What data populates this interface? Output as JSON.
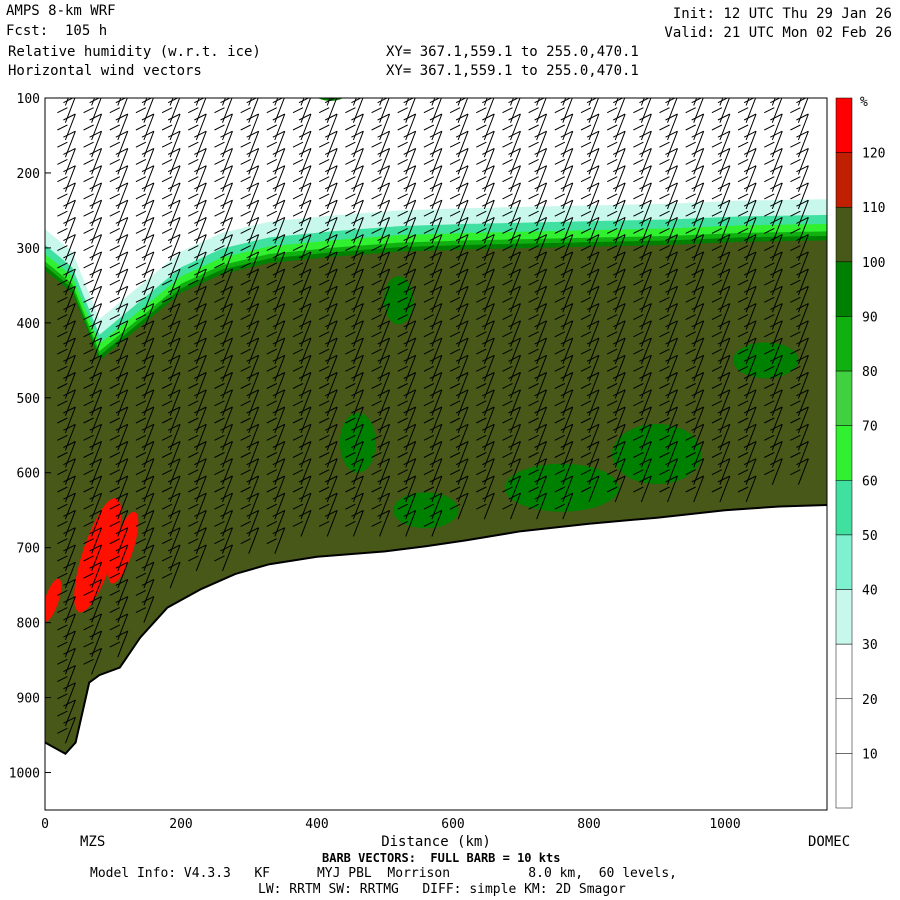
{
  "header": {
    "model": "AMPS 8-km WRF",
    "forecast": "Fcst:  105 h",
    "field1": "Relative humidity (w.r.t. ice)",
    "field2": "Horizontal wind vectors",
    "xy1": "XY= 367.1,559.1 to 255.0,470.1",
    "xy2": "XY= 367.1,559.1 to 255.0,470.1",
    "init": "Init: 12 UTC Thu 29 Jan 26",
    "valid": "Valid: 21 UTC Mon 02 Feb 26"
  },
  "footer": {
    "barb": "BARB VECTORS:  FULL BARB = 10 kts",
    "model_info": "Model Info: V4.3.3   KF      MYJ PBL  Morrison          8.0 km,  60 levels,",
    "physics": "LW: RRTM SW: RRTMG   DIFF: simple KM: 2D Smagor",
    "left_label": "MZS",
    "right_label": "DOMEC"
  },
  "chart_data": {
    "type": "heatmap",
    "title": "Relative humidity (w.r.t. ice)",
    "xlabel": "Distance (km)",
    "ylabel": "",
    "xlim": [
      0,
      1150
    ],
    "ylim": [
      1050,
      100
    ],
    "x_ticks": [
      0,
      200,
      400,
      600,
      800,
      1000
    ],
    "y_ticks": [
      100,
      200,
      300,
      400,
      500,
      600,
      700,
      800,
      900,
      1000
    ],
    "colorbar": {
      "unit": "%",
      "levels": [
        10,
        20,
        30,
        40,
        50,
        60,
        70,
        80,
        90,
        100,
        110,
        120
      ],
      "colors": [
        "#ffffff",
        "#ffffff",
        "#ffffff",
        "#c8f8ec",
        "#7ff0d0",
        "#40e0a0",
        "#30f030",
        "#40d040",
        "#10b010",
        "#008000",
        "#485818",
        "#c02000",
        "#ff0000"
      ]
    },
    "terrain_surface": {
      "x": [
        0,
        30,
        45,
        55,
        65,
        80,
        110,
        140,
        180,
        230,
        280,
        330,
        400,
        500,
        560,
        620,
        700,
        800,
        900,
        1000,
        1080,
        1150
      ],
      "p": [
        960,
        975,
        960,
        920,
        880,
        870,
        860,
        820,
        780,
        755,
        735,
        722,
        712,
        705,
        698,
        690,
        678,
        668,
        660,
        650,
        645,
        643
      ]
    },
    "moist_layer_top": {
      "x": [
        0,
        40,
        80,
        120,
        160,
        200,
        260,
        330,
        420,
        520,
        620,
        720,
        820,
        920,
        1020,
        1150
      ],
      "p": [
        330,
        360,
        450,
        420,
        390,
        360,
        335,
        320,
        312,
        305,
        302,
        300,
        298,
        296,
        292,
        290
      ]
    },
    "supersaturated_regions": [
      {
        "x_range": [
          55,
          100
        ],
        "p_range": [
          630,
          790
        ],
        "value": 120
      },
      {
        "x_range": [
          100,
          130
        ],
        "p_range": [
          650,
          750
        ],
        "value": 120
      },
      {
        "x_range": [
          0,
          20
        ],
        "p_range": [
          740,
          800
        ],
        "value": 120
      }
    ]
  }
}
